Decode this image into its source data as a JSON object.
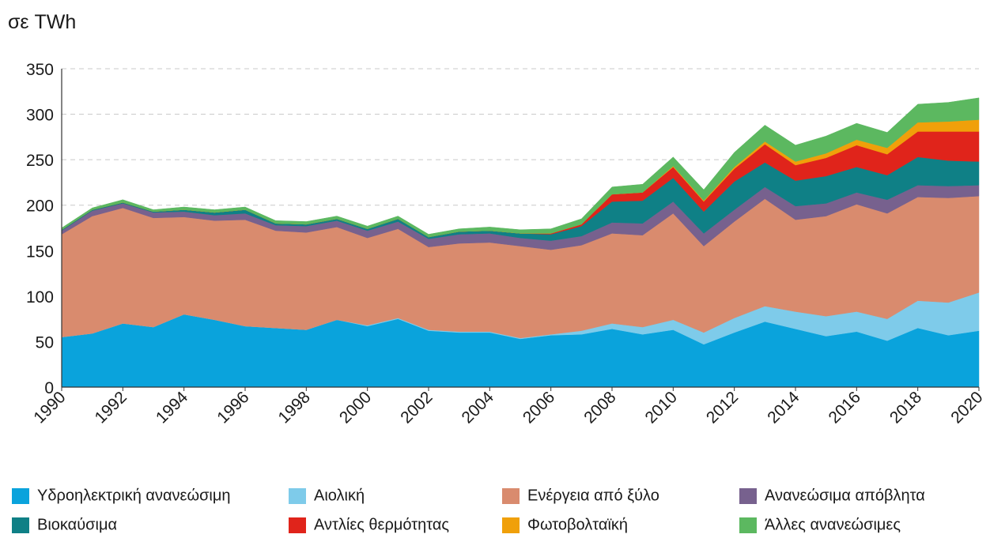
{
  "chart_data": {
    "type": "stacked_area",
    "ylabel": "σε TWh",
    "x": [
      1990,
      1991,
      1992,
      1993,
      1994,
      1995,
      1996,
      1997,
      1998,
      1999,
      2000,
      2001,
      2002,
      2003,
      2004,
      2005,
      2006,
      2007,
      2008,
      2009,
      2010,
      2011,
      2012,
      2013,
      2014,
      2015,
      2016,
      2017,
      2018,
      2019,
      2020
    ],
    "xlim": [
      1990,
      2020
    ],
    "xticks": [
      1990,
      1992,
      1994,
      1996,
      1998,
      2000,
      2002,
      2004,
      2006,
      2008,
      2010,
      2012,
      2014,
      2016,
      2018,
      2020
    ],
    "ylim": [
      0,
      350
    ],
    "yticks": [
      0,
      50,
      100,
      150,
      200,
      250,
      300,
      350
    ],
    "grid": true,
    "legend": "bottom",
    "series": [
      {
        "name": "Υδροηλεκτρική ανανεώσιμη",
        "color": "#0aa3dc",
        "values": [
          55,
          59,
          70,
          66,
          80,
          74,
          67,
          65,
          63,
          74,
          67,
          75,
          62,
          60,
          60,
          53,
          57,
          58,
          64,
          58,
          63,
          47,
          60,
          72,
          64,
          56,
          61,
          51,
          65,
          57,
          62
        ]
      },
      {
        "name": "Αιολική",
        "color": "#7ecbea",
        "values": [
          0,
          0,
          0,
          0,
          0,
          0,
          0,
          0,
          0,
          0,
          1,
          1,
          1,
          1,
          1,
          1,
          1,
          4,
          6,
          8,
          11,
          13,
          16,
          17,
          19,
          22,
          22,
          24,
          30,
          36,
          42
        ]
      },
      {
        "name": "Ενέργεια από ξύλο",
        "color": "#d98b6e",
        "values": [
          113,
          129,
          127,
          120,
          107,
          109,
          117,
          107,
          107,
          102,
          96,
          98,
          91,
          97,
          98,
          101,
          93,
          94,
          99,
          101,
          117,
          95,
          106,
          118,
          101,
          110,
          118,
          116,
          114,
          115,
          106
        ]
      },
      {
        "name": "Ανανεώσιμα απόβλητα",
        "color": "#77618e",
        "values": [
          4,
          6,
          5,
          6,
          6,
          6,
          7,
          6,
          7,
          7,
          8,
          8,
          9,
          10,
          10,
          9,
          10,
          10,
          12,
          13,
          13,
          14,
          13,
          13,
          15,
          14,
          13,
          15,
          13,
          13,
          12
        ]
      },
      {
        "name": "Βιοκαύσιμα",
        "color": "#0f8086",
        "values": [
          1,
          1,
          1,
          1,
          2,
          3,
          4,
          2,
          2,
          2,
          2,
          3,
          2,
          3,
          3,
          5,
          7,
          11,
          23,
          25,
          26,
          24,
          31,
          27,
          28,
          30,
          28,
          27,
          31,
          28,
          26
        ]
      },
      {
        "name": "Αντλίες θερμότητας",
        "color": "#e0241b",
        "values": [
          0,
          0,
          0,
          0,
          0,
          0,
          0,
          0,
          0,
          0,
          0,
          0,
          0,
          0,
          0,
          0,
          1,
          2,
          8,
          9,
          12,
          11,
          14,
          20,
          17,
          20,
          24,
          23,
          28,
          32,
          33
        ]
      },
      {
        "name": "Φωτοβολταϊκή",
        "color": "#f0a00a",
        "values": [
          0,
          0,
          0,
          0,
          0,
          0,
          0,
          0,
          0,
          0,
          0,
          0,
          0,
          0,
          0,
          0,
          0,
          0,
          0,
          0,
          1,
          1,
          2,
          3,
          4,
          5,
          6,
          7,
          10,
          11,
          13
        ]
      },
      {
        "name": "Άλλες ανανεώσιμες",
        "color": "#5cb860",
        "values": [
          2,
          2,
          3,
          2,
          3,
          3,
          3,
          3,
          3,
          3,
          3,
          3,
          3,
          3,
          4,
          4,
          5,
          6,
          8,
          9,
          10,
          12,
          16,
          18,
          18,
          19,
          18,
          17,
          20,
          21,
          24
        ]
      }
    ]
  }
}
